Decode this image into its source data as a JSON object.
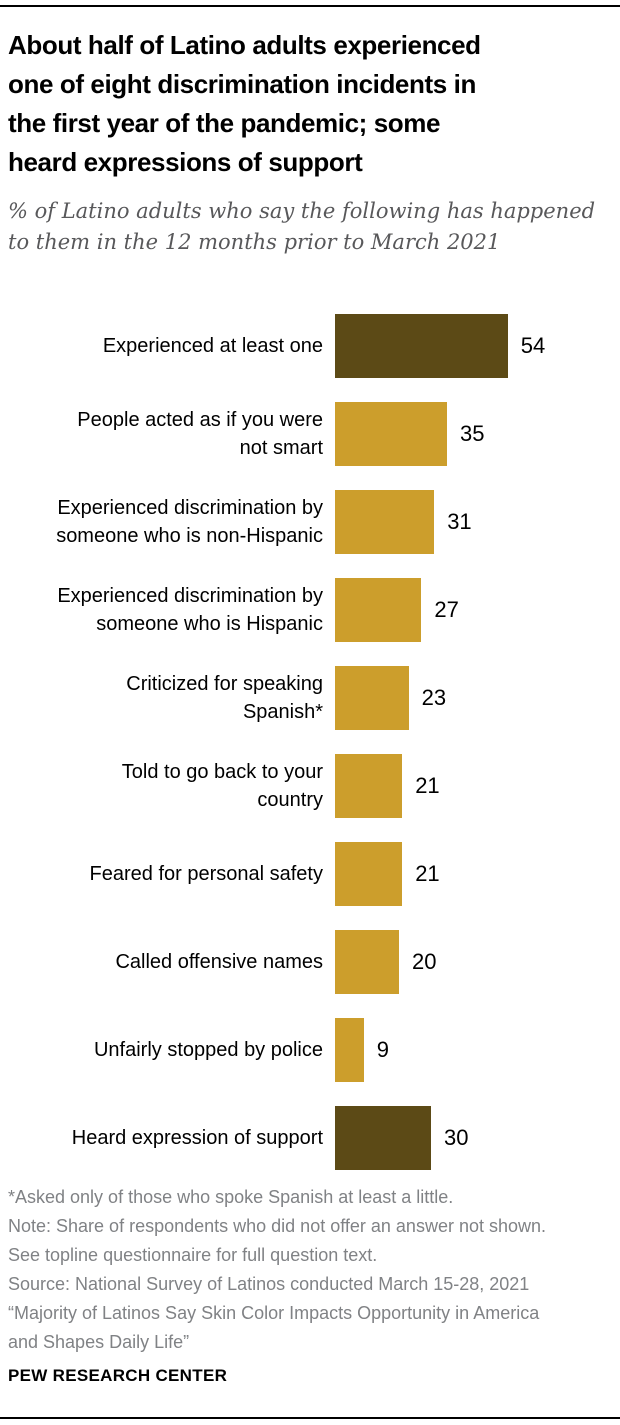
{
  "header": {
    "title": "About half of Latino adults experienced\none of eight discrimination incidents in\nthe first year of the pandemic; some\nheard expressions of support",
    "subtitle": "% of Latino adults who say the following has happened\nto them in the 12 months prior to March 2021"
  },
  "chart_data": {
    "type": "bar",
    "orientation": "horizontal",
    "value_unit": "percent",
    "xlim": [
      0,
      60
    ],
    "grid": false,
    "legend": "none",
    "colors": {
      "highlight": "#5C4A16",
      "default": "#CC9E2C"
    },
    "rows": [
      {
        "label": "Experienced at least one",
        "value": 54,
        "highlight": true
      },
      {
        "label": "People acted as if you were\nnot smart",
        "value": 35,
        "highlight": false
      },
      {
        "label": "Experienced discrimination by\nsomeone who is non-Hispanic",
        "value": 31,
        "highlight": false
      },
      {
        "label": "Experienced discrimination by\nsomeone who is Hispanic",
        "value": 27,
        "highlight": false
      },
      {
        "label": "Criticized for speaking\nSpanish*",
        "value": 23,
        "highlight": false
      },
      {
        "label": "Told to go back to your\ncountry",
        "value": 21,
        "highlight": false
      },
      {
        "label": "Feared for personal safety",
        "value": 21,
        "highlight": false
      },
      {
        "label": "Called offensive names",
        "value": 20,
        "highlight": false
      },
      {
        "label": "Unfairly stopped by police",
        "value": 9,
        "highlight": false
      },
      {
        "label": "Heard expression of support",
        "value": 30,
        "highlight": true
      }
    ]
  },
  "footer": {
    "notes": "*Asked only of those who spoke Spanish at least a little.\nNote: Share of respondents who did not offer an answer not shown.\nSee topline questionnaire for full question text.\nSource: National Survey of Latinos conducted March 15-28, 2021\n“Majority of Latinos Say Skin Color Impacts Opportunity in America\nand Shapes Daily Life”",
    "brand": "PEW RESEARCH CENTER"
  }
}
